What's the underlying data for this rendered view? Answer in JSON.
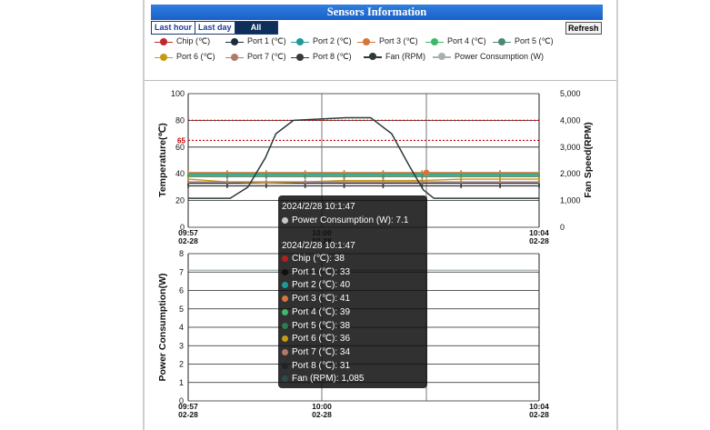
{
  "header": {
    "title": "Sensors Information"
  },
  "tabs": [
    {
      "label": "Last hour"
    },
    {
      "label": "Last day"
    },
    {
      "label": "All"
    }
  ],
  "refresh_label": "Refresh",
  "legend": [
    {
      "label": "Chip (℃)",
      "color": "#c0282d"
    },
    {
      "label": "Port 1 (℃)",
      "color": "#1b2a3c"
    },
    {
      "label": "Port 2 (℃)",
      "color": "#1f9a9a"
    },
    {
      "label": "Port 3 (℃)",
      "color": "#d8743a"
    },
    {
      "label": "Port 4 (℃)",
      "color": "#3fb86a"
    },
    {
      "label": "Port 5 (℃)",
      "color": "#4a8a70"
    },
    {
      "label": "Port 6 (℃)",
      "color": "#c59a14"
    },
    {
      "label": "Port 7 (℃)",
      "color": "#b07a68"
    },
    {
      "label": "Port 8 (℃)",
      "color": "#3a3a3a"
    },
    {
      "label": "Fan (RPM)",
      "color": "#2d3a3a"
    },
    {
      "label": "Power Consumption (W)",
      "color": "#a8b0b0"
    }
  ],
  "chart_data": [
    {
      "type": "line",
      "ylabel": "Temperature(℃)",
      "y2label": "Fan Speed(RPM)",
      "ylim": [
        0,
        100
      ],
      "y2lim": [
        0,
        5000
      ],
      "yticks": [
        "0",
        "20",
        "40",
        "60",
        "80",
        "100"
      ],
      "y2ticks": [
        "0",
        "1,000",
        "2,000",
        "3,000",
        "4,000",
        "5,000"
      ],
      "xticks": [
        {
          "time": "09:57",
          "date": "02-28"
        },
        {
          "time": "10:00",
          "date": "02-28"
        },
        {
          "time": "10:04",
          "date": "02-28"
        }
      ],
      "threshold_lines": [
        {
          "value": 80,
          "color": "#c00000"
        },
        {
          "value": 65,
          "color": "#c00000",
          "label": "65"
        }
      ],
      "temperature_series": [
        {
          "name": "Chip (℃)",
          "color": "#c0282d",
          "values": [
            38,
            38,
            38,
            38,
            38,
            38,
            38,
            38,
            38,
            38
          ]
        },
        {
          "name": "Port 1 (℃)",
          "color": "#1b2a3c",
          "values": [
            33,
            33,
            33,
            33,
            33,
            33,
            33,
            33,
            33,
            33
          ]
        },
        {
          "name": "Port 2 (℃)",
          "color": "#1f9a9a",
          "values": [
            40,
            40,
            40,
            40,
            40,
            40,
            40,
            40,
            40,
            40
          ]
        },
        {
          "name": "Port 3 (℃)",
          "color": "#d8743a",
          "values": [
            41,
            41,
            41,
            41,
            41,
            41,
            41,
            41,
            41,
            41
          ]
        },
        {
          "name": "Port 4 (℃)",
          "color": "#3fb86a",
          "values": [
            39,
            39,
            39,
            39,
            39,
            39,
            39,
            39,
            39,
            39
          ]
        },
        {
          "name": "Port 5 (℃)",
          "color": "#4a8a70",
          "values": [
            38,
            38,
            38,
            38,
            38,
            38,
            38,
            38,
            38,
            38
          ]
        },
        {
          "name": "Port 6 (℃)",
          "color": "#c59a14",
          "values": [
            36,
            34,
            33,
            34,
            35,
            35,
            35,
            36,
            36,
            36
          ]
        },
        {
          "name": "Port 7 (℃)",
          "color": "#b07a68",
          "values": [
            34,
            34,
            34,
            34,
            34,
            34,
            34,
            34,
            34,
            34
          ]
        },
        {
          "name": "Port 8 (℃)",
          "color": "#3a3a3a",
          "values": [
            31,
            31,
            31,
            31,
            31,
            31,
            31,
            31,
            31,
            31
          ]
        }
      ],
      "fan_series": {
        "name": "Fan (RPM)",
        "color": "#2d3a3a",
        "points": [
          [
            0,
            1085
          ],
          [
            0.12,
            1085
          ],
          [
            0.17,
            1500
          ],
          [
            0.22,
            2600
          ],
          [
            0.25,
            3500
          ],
          [
            0.3,
            4000
          ],
          [
            0.45,
            4100
          ],
          [
            0.52,
            4100
          ],
          [
            0.58,
            3500
          ],
          [
            0.63,
            2300
          ],
          [
            0.67,
            1400
          ],
          [
            0.7,
            1085
          ],
          [
            1,
            1085
          ]
        ]
      }
    },
    {
      "type": "line",
      "ylabel": "Power Consumption(W)",
      "ylim": [
        0,
        8
      ],
      "yticks": [
        "0",
        "1",
        "2",
        "3",
        "4",
        "5",
        "6",
        "7",
        "8"
      ],
      "xticks": [
        {
          "time": "09:57",
          "date": "02-28"
        },
        {
          "time": "10:00",
          "date": "02-28"
        },
        {
          "time": "10:04",
          "date": "02-28"
        }
      ],
      "series": [
        {
          "name": "Power Consumption (W)",
          "color": "#a8b0b0",
          "values": [
            7.1,
            7.1,
            7.1,
            7.1,
            7.1,
            7.1,
            7.1,
            7.1,
            7.1,
            7.1
          ]
        }
      ]
    }
  ],
  "tooltip": {
    "top": {
      "time": "2024/2/28 10:1:47",
      "items": [
        {
          "label": "Power Consumption (W): 7.1",
          "color": "#c8c8c8"
        }
      ]
    },
    "bottom": {
      "time": "2024/2/28 10:1:47",
      "items": [
        {
          "label": "Chip (℃): 38",
          "color": "#b02020"
        },
        {
          "label": "Port 1 (℃): 33",
          "color": "#101010"
        },
        {
          "label": "Port 2 (℃): 40",
          "color": "#1f9a9a"
        },
        {
          "label": "Port 3 (℃): 41",
          "color": "#d8743a"
        },
        {
          "label": "Port 4 (℃): 39",
          "color": "#3fb86a"
        },
        {
          "label": "Port 5 (℃): 38",
          "color": "#2f7a50"
        },
        {
          "label": "Port 6 (℃): 36",
          "color": "#c59a14"
        },
        {
          "label": "Port 7 (℃): 34",
          "color": "#b07a68"
        },
        {
          "label": "Port 8 (℃): 31",
          "color": "#222222"
        },
        {
          "label": "Fan (RPM): 1,085",
          "color": "#2d4a4a"
        }
      ]
    }
  }
}
